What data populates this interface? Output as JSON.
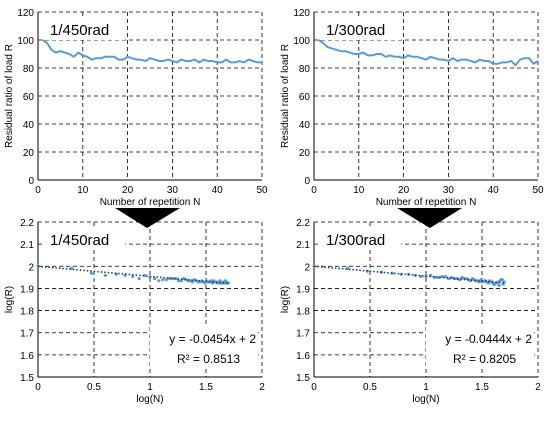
{
  "colors": {
    "series": "#5b9bd5",
    "trend": "#1f3864",
    "grid": "#000000",
    "arrow": "#000000"
  },
  "chart_data": [
    {
      "type": "line",
      "annotation": "1/450rad",
      "xlabel": "Number of repetition N",
      "ylabel": "Residual ratio of load R",
      "xlim": [
        0,
        50
      ],
      "ylim": [
        0,
        120
      ],
      "xticks": [
        "0",
        "10",
        "20",
        "30",
        "40",
        "50"
      ],
      "yticks": [
        "0",
        "20",
        "40",
        "60",
        "80",
        "100",
        "120"
      ],
      "grid": true,
      "series": [
        {
          "x": [
            1,
            2,
            3,
            4,
            5,
            6,
            7,
            8,
            9,
            10,
            11,
            12,
            13,
            14,
            15,
            16,
            17,
            18,
            19,
            20,
            21,
            22,
            23,
            24,
            25,
            26,
            27,
            28,
            29,
            30,
            31,
            32,
            33,
            34,
            35,
            36,
            37,
            38,
            39,
            40,
            41,
            42,
            43,
            44,
            45,
            46,
            47,
            48,
            49,
            50
          ],
          "y": [
            100,
            98,
            93,
            91,
            92,
            91,
            90,
            88,
            91,
            89,
            88,
            86,
            87,
            87,
            88,
            88,
            88,
            86,
            86,
            88,
            87,
            86,
            86,
            85,
            87,
            86,
            85,
            85,
            86,
            85,
            84,
            86,
            85,
            85,
            86,
            84,
            86,
            85,
            85,
            84,
            84,
            86,
            84,
            84,
            85,
            84,
            86,
            85,
            84,
            84
          ]
        }
      ]
    },
    {
      "type": "line",
      "annotation": "1/300rad",
      "xlabel": "Number of repetition N",
      "ylabel": "Residual ratio of load R",
      "xlim": [
        0,
        50
      ],
      "ylim": [
        0,
        120
      ],
      "xticks": [
        "0",
        "10",
        "20",
        "30",
        "40",
        "50"
      ],
      "yticks": [
        "0",
        "20",
        "40",
        "60",
        "80",
        "100",
        "120"
      ],
      "grid": true,
      "series": [
        {
          "x": [
            1,
            2,
            3,
            4,
            5,
            6,
            7,
            8,
            9,
            10,
            11,
            12,
            13,
            14,
            15,
            16,
            17,
            18,
            19,
            20,
            21,
            22,
            23,
            24,
            25,
            26,
            27,
            28,
            29,
            30,
            31,
            32,
            33,
            34,
            35,
            36,
            37,
            38,
            39,
            40,
            41,
            42,
            43,
            44,
            45,
            46,
            47,
            48,
            49,
            50
          ],
          "y": [
            100,
            98,
            95,
            94,
            93,
            92,
            92,
            91,
            90,
            90,
            91,
            89,
            89,
            90,
            90,
            88,
            89,
            88,
            88,
            87,
            89,
            88,
            88,
            87,
            86,
            88,
            87,
            86,
            86,
            85,
            87,
            85,
            86,
            86,
            85,
            84,
            86,
            85,
            85,
            83,
            83,
            84,
            84,
            85,
            82,
            86,
            87,
            87,
            83,
            85
          ]
        }
      ]
    },
    {
      "type": "scatter",
      "annotation": "1/450rad",
      "xlabel": "log(N)",
      "ylabel": "log(R)",
      "xlim": [
        0,
        2
      ],
      "ylim": [
        1.5,
        2.2
      ],
      "xticks": [
        "0",
        "0.5",
        "1",
        "1.5",
        "2"
      ],
      "yticks": [
        "1.5",
        "1.6",
        "1.7",
        "1.8",
        "1.9",
        "2",
        "2.1",
        "2.2"
      ],
      "grid": true,
      "equation": "y = -0.0454x + 2",
      "r2": "R² = 0.8513",
      "trend": {
        "slope": -0.0454,
        "intercept": 2,
        "x": [
          0,
          1.7
        ]
      }
    },
    {
      "type": "scatter",
      "annotation": "1/300rad",
      "xlabel": "log(N)",
      "ylabel": "log(R)",
      "xlim": [
        0,
        2
      ],
      "ylim": [
        1.5,
        2.2
      ],
      "xticks": [
        "0",
        "0.5",
        "1",
        "1.5",
        "2"
      ],
      "yticks": [
        "1.5",
        "1.6",
        "1.7",
        "1.8",
        "1.9",
        "2",
        "2.1",
        "2.2"
      ],
      "grid": true,
      "equation": "y = -0.0444x + 2",
      "r2": "R² = 0.8205",
      "trend": {
        "slope": -0.0444,
        "intercept": 2,
        "x": [
          0,
          1.7
        ]
      }
    }
  ]
}
